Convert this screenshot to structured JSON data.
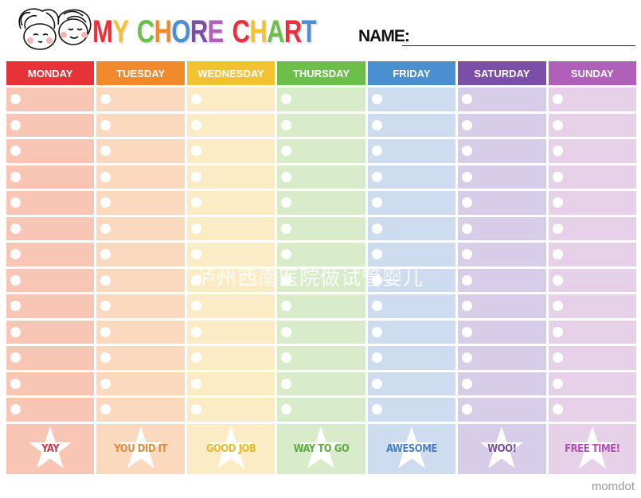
{
  "header": {
    "title_letters": [
      {
        "ch": "M",
        "color": "#e8323a"
      },
      {
        "ch": "Y",
        "color": "#f2c230"
      },
      {
        "ch": " ",
        "color": "#fff"
      },
      {
        "ch": "C",
        "color": "#6cc04a"
      },
      {
        "ch": "H",
        "color": "#f08a2c"
      },
      {
        "ch": "O",
        "color": "#4a8fd0"
      },
      {
        "ch": "R",
        "color": "#7b4fa8"
      },
      {
        "ch": "E",
        "color": "#b060b8"
      },
      {
        "ch": " ",
        "color": "#fff"
      },
      {
        "ch": "C",
        "color": "#e8323a"
      },
      {
        "ch": "H",
        "color": "#f2c230"
      },
      {
        "ch": "A",
        "color": "#6cc04a"
      },
      {
        "ch": "R",
        "color": "#e8323a"
      },
      {
        "ch": "T",
        "color": "#4a8fd0"
      }
    ],
    "title": "MY CHORE CHART",
    "name_label": "NAME:"
  },
  "days": [
    {
      "label": "MONDAY",
      "header_color": "#e8323a",
      "cell_color": "#f9c6b6",
      "reward": "YAY",
      "reward_color": "#c0404a"
    },
    {
      "label": "TUESDAY",
      "header_color": "#f08a2c",
      "cell_color": "#fbd9bf",
      "reward": "YOU DID IT",
      "reward_color": "#e08a3a"
    },
    {
      "label": "WEDNESDAY",
      "header_color": "#f2c230",
      "cell_color": "#fcecc6",
      "reward": "GOOD JOB",
      "reward_color": "#e8b830"
    },
    {
      "label": "THURSDAY",
      "header_color": "#6cc04a",
      "cell_color": "#d9ecca",
      "reward": "WAY TO GO",
      "reward_color": "#5aac40"
    },
    {
      "label": "FRIDAY",
      "header_color": "#4a8fd0",
      "cell_color": "#cedcf0",
      "reward": "AWESOME",
      "reward_color": "#4a80c8"
    },
    {
      "label": "SATURDAY",
      "header_color": "#7b4fa8",
      "cell_color": "#d7cde8",
      "reward": "WOO!",
      "reward_color": "#7a4a9e"
    },
    {
      "label": "SUNDAY",
      "header_color": "#b060b8",
      "cell_color": "#e7d1e9",
      "reward": "FREE TIME!",
      "reward_color": "#b050b0"
    }
  ],
  "rows_per_day": 13,
  "brand": "momdot",
  "watermark": "泸州西南医院做试管婴儿"
}
